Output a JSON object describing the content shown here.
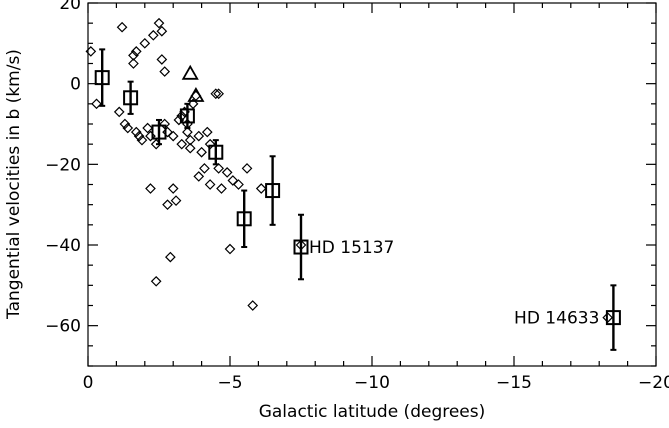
{
  "chart_data": {
    "type": "scatter",
    "xlabel": "Galactic latitude (degrees)",
    "ylabel": "Tangential velocities in b (km/s)",
    "xlim": [
      0,
      -20
    ],
    "ylim": [
      -70,
      20
    ],
    "xticks": [
      0,
      -5,
      -10,
      -15,
      -20
    ],
    "xtick_labels": [
      "0",
      "−5",
      "−10",
      "−15",
      "−20"
    ],
    "yticks": [
      -60,
      -40,
      -20,
      0,
      20
    ],
    "ytick_labels": [
      "−60",
      "−40",
      "−20",
      "0",
      "20"
    ],
    "grid": false,
    "series": [
      {
        "marker": "diamond",
        "points": [
          [
            -0.1,
            8
          ],
          [
            -0.3,
            -5
          ],
          [
            -1.1,
            -7
          ],
          [
            -1.2,
            14
          ],
          [
            -1.3,
            -10
          ],
          [
            -1.4,
            -11
          ],
          [
            -1.6,
            7
          ],
          [
            -1.6,
            5
          ],
          [
            -1.7,
            8
          ],
          [
            -1.7,
            -12
          ],
          [
            -1.8,
            -13
          ],
          [
            -1.9,
            -14
          ],
          [
            -2.0,
            10
          ],
          [
            -2.1,
            -11
          ],
          [
            -2.2,
            -13
          ],
          [
            -2.2,
            -26
          ],
          [
            -2.3,
            12
          ],
          [
            -2.4,
            -15
          ],
          [
            -2.4,
            -49
          ],
          [
            -2.5,
            15
          ],
          [
            -2.6,
            13
          ],
          [
            -2.6,
            6
          ],
          [
            -2.7,
            3
          ],
          [
            -2.7,
            -10
          ],
          [
            -2.8,
            -12
          ],
          [
            -2.8,
            -30
          ],
          [
            -2.9,
            -43
          ],
          [
            -3.0,
            -13
          ],
          [
            -3.0,
            -26
          ],
          [
            -3.1,
            -29
          ],
          [
            -3.2,
            -9
          ],
          [
            -3.3,
            -8
          ],
          [
            -3.3,
            -15
          ],
          [
            -3.4,
            -7
          ],
          [
            -3.5,
            -10
          ],
          [
            -3.5,
            -12
          ],
          [
            -3.6,
            -14
          ],
          [
            -3.6,
            -16
          ],
          [
            -3.7,
            -5
          ],
          [
            -3.8,
            -3
          ],
          [
            -3.9,
            -13
          ],
          [
            -3.9,
            -23
          ],
          [
            -4.0,
            -17
          ],
          [
            -4.1,
            -21
          ],
          [
            -4.2,
            -12
          ],
          [
            -4.3,
            -15
          ],
          [
            -4.3,
            -25
          ],
          [
            -4.5,
            -2.5
          ],
          [
            -4.6,
            -2.5
          ],
          [
            -4.6,
            -21
          ],
          [
            -4.7,
            -26
          ],
          [
            -4.9,
            -22
          ],
          [
            -5.0,
            -41
          ],
          [
            -5.1,
            -24
          ],
          [
            -5.3,
            -25
          ],
          [
            -5.6,
            -21
          ],
          [
            -5.8,
            -55
          ],
          [
            -6.1,
            -26
          ],
          [
            -7.5,
            -40
          ],
          [
            -18.3,
            -58
          ]
        ]
      },
      {
        "marker": "triangle",
        "points": [
          [
            -3.6,
            2.5
          ],
          [
            -3.8,
            -3
          ]
        ]
      },
      {
        "marker": "square",
        "error_bars": true,
        "points": [
          {
            "x": -0.5,
            "y": 1.5,
            "err": 7
          },
          {
            "x": -1.5,
            "y": -3.5,
            "err": 4
          },
          {
            "x": -2.5,
            "y": -12,
            "err": 3
          },
          {
            "x": -3.5,
            "y": -8,
            "err": 3
          },
          {
            "x": -4.5,
            "y": -17,
            "err": 3
          },
          {
            "x": -5.5,
            "y": -33.5,
            "err": 7
          },
          {
            "x": -6.5,
            "y": -26.5,
            "err": 8.5
          },
          {
            "x": -7.5,
            "y": -40.5,
            "err": 8
          },
          {
            "x": -18.5,
            "y": -58,
            "err": 8
          }
        ]
      }
    ],
    "annotations": [
      {
        "text": "HD 15137",
        "x": -7.5,
        "y": -40.5,
        "anchor": "start",
        "dx": 8
      },
      {
        "text": "HD 14633",
        "x": -18.5,
        "y": -58,
        "anchor": "end",
        "dx": -14
      }
    ]
  }
}
